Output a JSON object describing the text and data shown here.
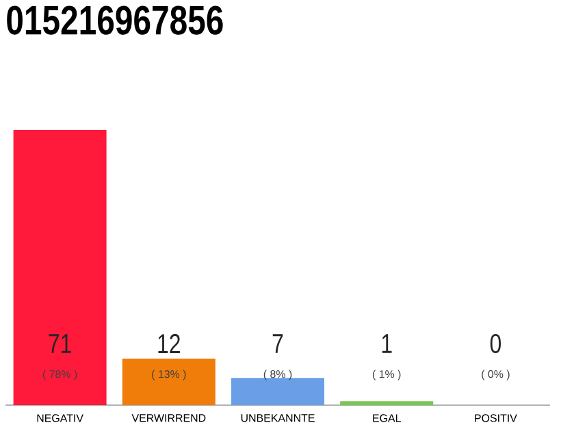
{
  "chart_data": {
    "type": "bar",
    "title": "015216967856",
    "categories": [
      "NEGATIV",
      "VERWIRREND",
      "UNBEKANNTE",
      "EGAL",
      "POSITIV"
    ],
    "values": [
      71,
      12,
      7,
      1,
      0
    ],
    "colors": [
      "#ff1a3c",
      "#f07d0a",
      "#6a9fe8",
      "#7bc653",
      "#cccccc"
    ],
    "data_labels": true,
    "annotations": [
      "( 78% )",
      "( 13% )",
      "( 8% )",
      "( 1% )",
      "( 0% )"
    ],
    "tick_labels": "x"
  }
}
